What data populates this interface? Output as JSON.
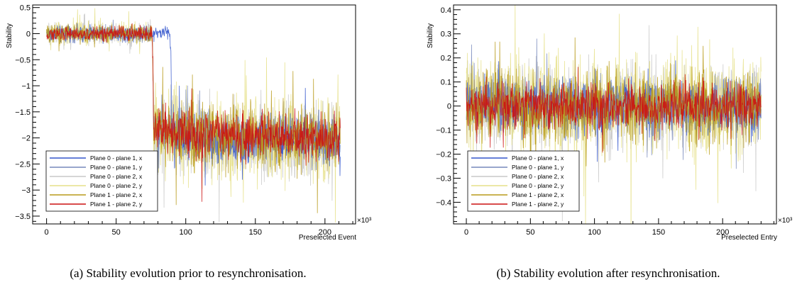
{
  "chart_data": [
    {
      "type": "line",
      "caption": "(a) Stability evolution prior to resynchronisation.",
      "xlabel": "Preselected Event",
      "ylabel": "Stability",
      "x_multiplier": "×10³",
      "xlim": [
        -10,
        222
      ],
      "ylim": [
        -3.65,
        0.55
      ],
      "xticks": [
        0,
        50,
        100,
        150,
        200
      ],
      "yticks": [
        0.5,
        0,
        -0.5,
        -1,
        -1.5,
        -2,
        -2.5,
        -3,
        -3.5
      ],
      "ytick_labels": [
        "0.5",
        "0",
        "−0.5",
        "−1",
        "−1.5",
        "−2",
        "−2.5",
        "−3",
        "−3.5"
      ],
      "grid": false,
      "legend_position": "bottom-left",
      "series": [
        {
          "name": "Plane 0 - plane 1, x",
          "color": "#3355cc",
          "x": [
            0,
            20,
            40,
            60,
            76,
            77,
            89,
            90,
            120,
            150,
            180,
            210
          ],
          "values": [
            0.0,
            0.01,
            0.0,
            0.0,
            0.0,
            0.02,
            0.02,
            -1.9,
            -2.1,
            -2.05,
            -2.0,
            -2.1
          ]
        },
        {
          "name": "Plane 0 - plane 1, y",
          "color": "#7788bb",
          "x": [
            0,
            20,
            40,
            60,
            76,
            77,
            120,
            150,
            180,
            210
          ],
          "values": [
            0.0,
            0.0,
            0.01,
            0.0,
            0.0,
            -1.85,
            -1.95,
            -2.0,
            -2.0,
            -2.1
          ]
        },
        {
          "name": "Plane 0 - plane 2, x",
          "color": "#c8c8c8",
          "x": [
            0,
            20,
            40,
            60,
            76,
            77,
            120,
            150,
            180,
            210
          ],
          "values": [
            0.0,
            0.0,
            0.0,
            0.0,
            0.0,
            -1.9,
            -2.0,
            -2.05,
            -2.1,
            -2.05
          ]
        },
        {
          "name": "Plane 0 - plane 2, y",
          "color": "#e6e088",
          "x": [
            0,
            20,
            40,
            60,
            76,
            77,
            120,
            150,
            180,
            210
          ],
          "values": [
            0.0,
            0.0,
            0.0,
            0.0,
            0.0,
            -1.85,
            -2.0,
            -2.0,
            -2.05,
            -2.0
          ]
        },
        {
          "name": "Plane 1 - plane 2, x",
          "color": "#b89a1a",
          "x": [
            0,
            20,
            40,
            60,
            76,
            77,
            120,
            150,
            180,
            210
          ],
          "values": [
            0.0,
            0.0,
            0.0,
            0.0,
            0.0,
            -1.85,
            -1.95,
            -2.0,
            -2.0,
            -2.0
          ]
        },
        {
          "name": "Plane 1 - plane 2, y",
          "color": "#cc1111",
          "x": [
            0,
            20,
            40,
            60,
            76,
            77,
            120,
            150,
            180,
            210
          ],
          "values": [
            0.0,
            0.0,
            0.0,
            0.0,
            0.0,
            -1.85,
            -1.9,
            -1.95,
            -2.0,
            -2.0
          ]
        }
      ]
    },
    {
      "type": "line",
      "caption": "(b) Stability evolution after resynchronisation.",
      "xlabel": "Preselected Entry",
      "ylabel": "Stability",
      "x_multiplier": "×10³",
      "xlim": [
        -10,
        242
      ],
      "ylim": [
        -0.49,
        0.42
      ],
      "xticks": [
        0,
        50,
        100,
        150,
        200
      ],
      "yticks": [
        0.4,
        0.3,
        0.2,
        0.1,
        0,
        -0.1,
        -0.2,
        -0.3,
        -0.4
      ],
      "ytick_labels": [
        "0.4",
        "0.3",
        "0.2",
        "0.1",
        "0",
        "−0.1",
        "−0.2",
        "−0.3",
        "−0.4"
      ],
      "grid": false,
      "legend_position": "bottom-left",
      "series": [
        {
          "name": "Plane 0 - plane 1, x",
          "color": "#3355cc",
          "x": [
            0,
            50,
            100,
            150,
            200,
            230
          ],
          "values": [
            0,
            0,
            0,
            0,
            0,
            0
          ]
        },
        {
          "name": "Plane 0 - plane 1, y",
          "color": "#7788bb",
          "x": [
            0,
            50,
            100,
            150,
            200,
            230
          ],
          "values": [
            0,
            0,
            0,
            0,
            0,
            0
          ]
        },
        {
          "name": "Plane 0 - plane 2, x",
          "color": "#c8c8c8",
          "x": [
            0,
            50,
            100,
            150,
            200,
            230
          ],
          "values": [
            0,
            0,
            0,
            0,
            0,
            0
          ]
        },
        {
          "name": "Plane 0 - plane 2, y",
          "color": "#e6e088",
          "x": [
            0,
            50,
            100,
            150,
            200,
            230
          ],
          "values": [
            0,
            0,
            0,
            0,
            0,
            0
          ]
        },
        {
          "name": "Plane 1 - plane 2, x",
          "color": "#b89a1a",
          "x": [
            0,
            50,
            100,
            150,
            200,
            230
          ],
          "values": [
            0,
            0,
            0,
            0,
            0,
            0
          ]
        },
        {
          "name": "Plane 1 - plane 2, y",
          "color": "#cc1111",
          "x": [
            0,
            50,
            100,
            150,
            200,
            230
          ],
          "values": [
            0,
            0,
            0,
            0,
            0,
            0
          ]
        }
      ]
    }
  ]
}
